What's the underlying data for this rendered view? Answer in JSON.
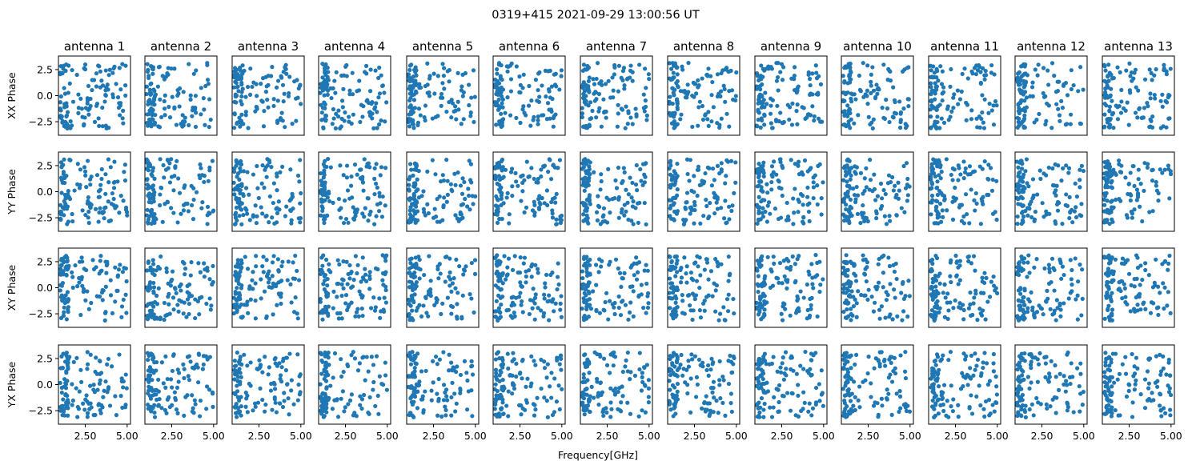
{
  "chart_data": {
    "type": "scatter",
    "suptitle": "0319+415 2021-09-29 13:00:56 UT",
    "xlabel": "Frequency[GHz]",
    "columns": [
      "antenna 1",
      "antenna 2",
      "antenna 3",
      "antenna 4",
      "antenna 5",
      "antenna 6",
      "antenna 7",
      "antenna 8",
      "antenna 9",
      "antenna 10",
      "antenna 11",
      "antenna 12",
      "antenna 13"
    ],
    "rows": [
      "XX Phase",
      "YY Phase",
      "XY Phase",
      "YX Phase"
    ],
    "xlim": [
      0.9,
      5.2
    ],
    "ylim": [
      -3.8,
      3.8
    ],
    "xticks": [
      2.5,
      5.0
    ],
    "xtick_labels": [
      "2.50",
      "5.00"
    ],
    "yticks": [
      2.5,
      0.0,
      -2.5
    ],
    "ytick_labels": [
      "2.5",
      "0.0",
      "−2.5"
    ],
    "marker_color": "#1f77b4",
    "points_per_panel": 120,
    "point_note": "random phases in [-pi, pi] vs frequency 1.0-5.0 GHz, denser near 1.0-1.5 GHz"
  }
}
